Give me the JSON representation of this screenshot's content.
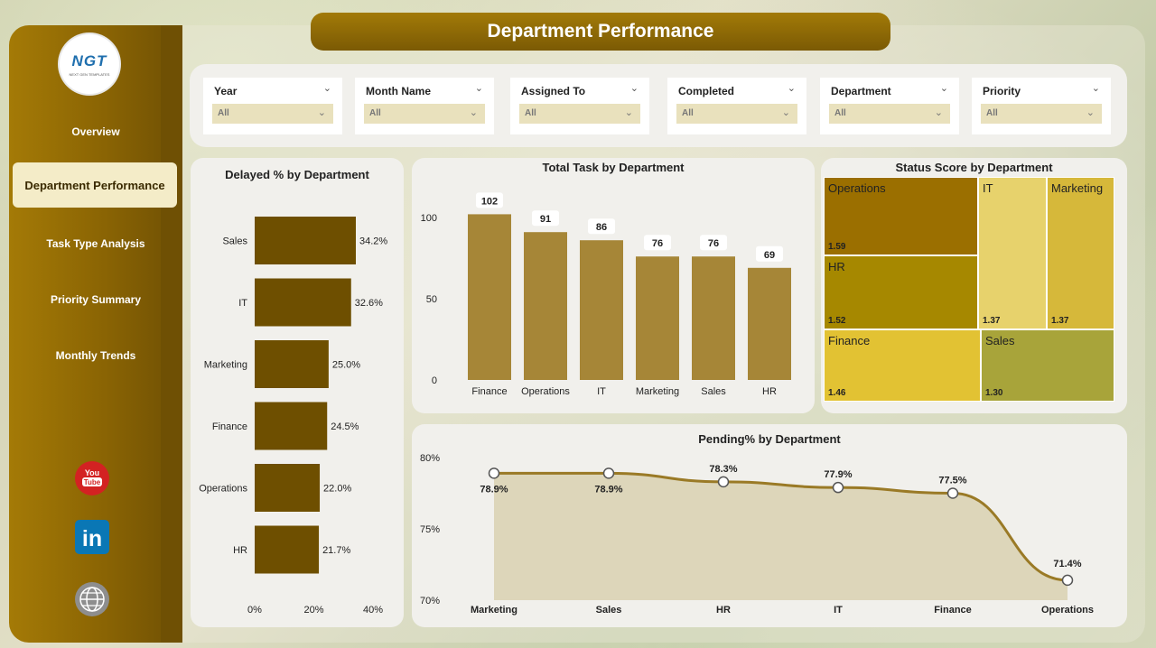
{
  "header": {
    "title": "Department Performance"
  },
  "logo": {
    "text": "NGT",
    "subtitle": "NEXT GEN TEMPLATES"
  },
  "sidebar": {
    "items": [
      {
        "label": "Overview"
      },
      {
        "label": "Department Performance",
        "active": true
      },
      {
        "label": "Task Type Analysis"
      },
      {
        "label": "Priority Summary"
      },
      {
        "label": "Monthly Trends"
      }
    ],
    "social": [
      {
        "icon": "youtube-icon",
        "text": "You Tube"
      },
      {
        "icon": "linkedin-icon",
        "text": "in"
      },
      {
        "icon": "globe-icon"
      }
    ]
  },
  "filters": [
    {
      "label": "Year",
      "value": "All"
    },
    {
      "label": "Month Name",
      "value": "All"
    },
    {
      "label": "Assigned To",
      "value": "All"
    },
    {
      "label": "Completed",
      "value": "All"
    },
    {
      "label": "Department",
      "value": "All"
    },
    {
      "label": "Priority",
      "value": "All"
    }
  ],
  "colors": {
    "accent": "#8a6404",
    "bar_dark": "#6e4f00",
    "bar_gold": "#a68637",
    "line": "#9a7a26"
  },
  "chart_data": [
    {
      "type": "bar",
      "orientation": "horizontal",
      "title": "Delayed % by Department",
      "categories": [
        "Sales",
        "IT",
        "Marketing",
        "Finance",
        "Operations",
        "HR"
      ],
      "values": [
        34.2,
        32.6,
        25.0,
        24.5,
        22.0,
        21.7
      ],
      "value_labels": [
        "34.2%",
        "32.6%",
        "25.0%",
        "24.5%",
        "22.0%",
        "21.7%"
      ],
      "xlim": [
        0,
        40
      ],
      "xticks": [
        "0%",
        "20%",
        "40%"
      ]
    },
    {
      "type": "bar",
      "title": "Total Task by Department",
      "categories": [
        "Finance",
        "Operations",
        "IT",
        "Marketing",
        "Sales",
        "HR"
      ],
      "values": [
        102,
        91,
        86,
        76,
        76,
        69
      ],
      "ylim": [
        0,
        110
      ],
      "yticks": [
        "0",
        "50",
        "100"
      ]
    },
    {
      "type": "treemap",
      "title": "Status Score by Department",
      "items": [
        {
          "name": "Operations",
          "value": 1.59,
          "label": "1.59",
          "color": "#9b6f00"
        },
        {
          "name": "HR",
          "value": 1.52,
          "label": "1.52",
          "color": "#a68800"
        },
        {
          "name": "IT",
          "value": 1.37,
          "label": "1.37",
          "color": "#e7d26c"
        },
        {
          "name": "Marketing",
          "value": 1.37,
          "label": "1.37",
          "color": "#d6b83a"
        },
        {
          "name": "Finance",
          "value": 1.46,
          "label": "1.46",
          "color": "#e2c233"
        },
        {
          "name": "Sales",
          "value": 1.3,
          "label": "1.30",
          "color": "#a8a43a"
        }
      ]
    },
    {
      "type": "area",
      "title": "Pending% by Department",
      "categories": [
        "Marketing",
        "Sales",
        "HR",
        "IT",
        "Finance",
        "Operations"
      ],
      "values": [
        78.9,
        78.9,
        78.3,
        77.9,
        77.5,
        71.4
      ],
      "value_labels": [
        "78.9%",
        "78.9%",
        "78.3%",
        "77.9%",
        "77.5%",
        "71.4%"
      ],
      "ylim": [
        70,
        80
      ],
      "yticks": [
        "70%",
        "75%",
        "80%"
      ]
    }
  ]
}
